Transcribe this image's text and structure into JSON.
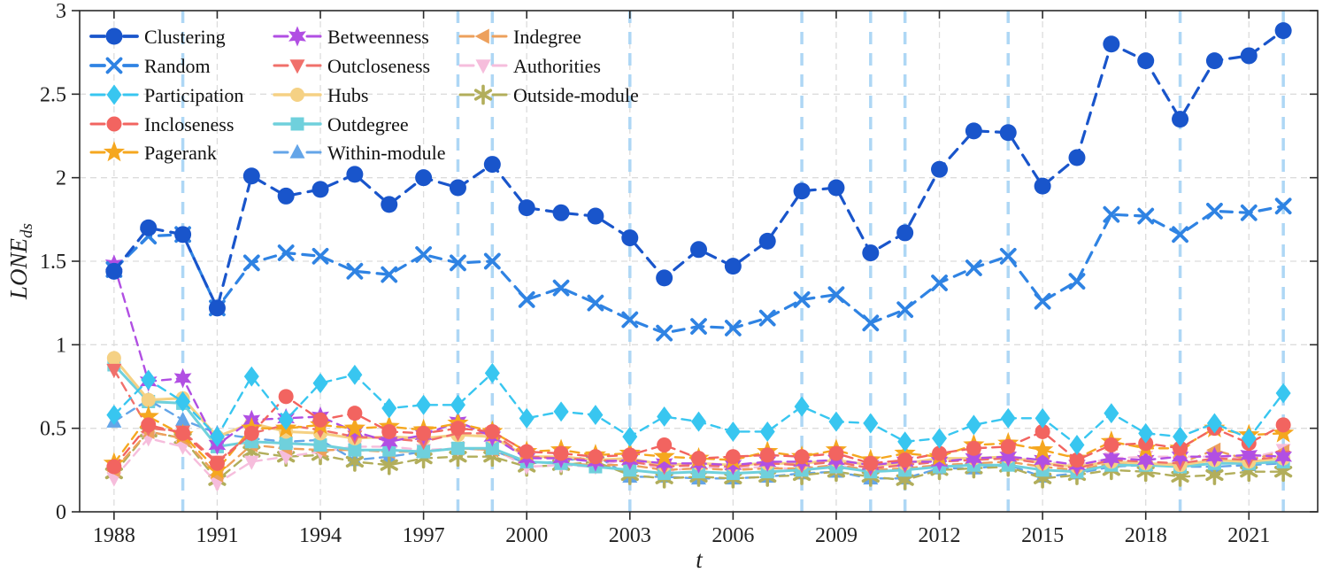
{
  "figure": {
    "xlabel": "t",
    "ylabel": "LONE",
    "ylabel_sub": "ds",
    "background": "#ffffff",
    "axis_color": "#2b2b2b",
    "grid_color": "#dcdcdc",
    "event_line_color": "#aed7f5",
    "event_years": [
      1990,
      1998,
      1999,
      2003,
      2008,
      2010,
      2011,
      2014,
      2019,
      2022
    ],
    "x_ticks": [
      1988,
      1991,
      1994,
      1997,
      2000,
      2003,
      2006,
      2009,
      2012,
      2015,
      2018,
      2021
    ],
    "y_ticks": [
      0,
      0.5,
      1,
      1.5,
      2,
      2.5,
      3
    ],
    "y_tick_labels": [
      "0",
      "0.5",
      "1",
      "1.5",
      "2",
      "2.5",
      "3"
    ],
    "xlim": [
      1987,
      2023
    ],
    "ylim": [
      0,
      3
    ]
  },
  "chart_data": {
    "type": "line",
    "title": "",
    "xlabel": "t",
    "ylabel": "LONE_ds",
    "grid": true,
    "legend_position": "top-left",
    "legend_columns": 3,
    "x": [
      1988,
      1989,
      1990,
      1991,
      1992,
      1993,
      1994,
      1995,
      1996,
      1997,
      1998,
      1999,
      2000,
      2001,
      2002,
      2003,
      2004,
      2005,
      2006,
      2007,
      2008,
      2009,
      2010,
      2011,
      2012,
      2013,
      2014,
      2015,
      2016,
      2017,
      2018,
      2019,
      2020,
      2021,
      2022
    ],
    "series": [
      {
        "name": "Clustering",
        "color": "#1955cb",
        "marker": "circle",
        "marker_size": 9.5,
        "line": "dashed",
        "width": 3.2,
        "values": [
          1.44,
          1.7,
          1.66,
          1.22,
          2.01,
          1.89,
          1.93,
          2.02,
          1.84,
          2.0,
          1.94,
          2.08,
          1.82,
          1.79,
          1.77,
          1.64,
          1.4,
          1.57,
          1.47,
          1.62,
          1.92,
          1.94,
          1.55,
          1.67,
          2.05,
          2.28,
          2.27,
          1.95,
          2.12,
          2.8,
          2.7,
          2.35,
          2.7,
          2.73,
          2.88
        ]
      },
      {
        "name": "Random",
        "color": "#2f83e3",
        "marker": "x",
        "marker_size": 7.5,
        "line": "dashed",
        "width": 3.2,
        "values": [
          1.45,
          1.65,
          1.66,
          1.22,
          1.49,
          1.55,
          1.53,
          1.44,
          1.42,
          1.54,
          1.49,
          1.5,
          1.27,
          1.34,
          1.25,
          1.15,
          1.07,
          1.11,
          1.1,
          1.16,
          1.27,
          1.3,
          1.13,
          1.21,
          1.37,
          1.46,
          1.53,
          1.26,
          1.38,
          1.78,
          1.77,
          1.66,
          1.8,
          1.79,
          1.83
        ]
      },
      {
        "name": "Participation",
        "color": "#38c6f0",
        "marker": "diamond",
        "marker_size": 8.5,
        "line": "dashed",
        "width": 2.4,
        "values": [
          0.58,
          0.79,
          0.66,
          0.45,
          0.81,
          0.55,
          0.77,
          0.82,
          0.62,
          0.64,
          0.64,
          0.83,
          0.56,
          0.6,
          0.58,
          0.45,
          0.57,
          0.54,
          0.48,
          0.48,
          0.63,
          0.54,
          0.53,
          0.42,
          0.44,
          0.52,
          0.56,
          0.56,
          0.4,
          0.59,
          0.47,
          0.45,
          0.53,
          0.44,
          0.71
        ]
      },
      {
        "name": "Incloseness",
        "color": "#f26460",
        "marker": "circle",
        "marker_size": 8.5,
        "line": "dashed",
        "width": 2.4,
        "values": [
          0.27,
          0.52,
          0.47,
          0.29,
          0.47,
          0.69,
          0.55,
          0.59,
          0.48,
          0.47,
          0.5,
          0.48,
          0.36,
          0.35,
          0.33,
          0.34,
          0.4,
          0.32,
          0.33,
          0.34,
          0.33,
          0.35,
          0.29,
          0.31,
          0.35,
          0.38,
          0.39,
          0.48,
          0.31,
          0.4,
          0.41,
          0.38,
          0.5,
          0.41,
          0.52
        ]
      },
      {
        "name": "Pagerank",
        "color": "#f5a71f",
        "marker": "star5",
        "marker_size": 8.5,
        "line": "dashed",
        "width": 2.4,
        "values": [
          0.29,
          0.57,
          0.46,
          0.25,
          0.5,
          0.5,
          0.52,
          0.5,
          0.51,
          0.49,
          0.53,
          0.48,
          0.36,
          0.37,
          0.34,
          0.35,
          0.33,
          0.32,
          0.31,
          0.36,
          0.33,
          0.37,
          0.31,
          0.35,
          0.33,
          0.4,
          0.41,
          0.37,
          0.32,
          0.42,
          0.38,
          0.38,
          0.5,
          0.46,
          0.47
        ]
      },
      {
        "name": "Betweenness",
        "color": "#b14fe3",
        "marker": "star6",
        "marker_size": 8.5,
        "line": "dashed",
        "width": 2.4,
        "values": [
          1.48,
          0.78,
          0.8,
          0.4,
          0.55,
          0.56,
          0.57,
          0.48,
          0.42,
          0.46,
          0.54,
          0.45,
          0.32,
          0.32,
          0.3,
          0.31,
          0.29,
          0.29,
          0.28,
          0.3,
          0.3,
          0.31,
          0.28,
          0.3,
          0.3,
          0.32,
          0.33,
          0.31,
          0.28,
          0.32,
          0.31,
          0.33,
          0.33,
          0.34,
          0.33
        ]
      },
      {
        "name": "Outcloseness",
        "color": "#f0706b",
        "marker": "triangle-down",
        "marker_size": 8.5,
        "line": "dashed",
        "width": 2.4,
        "values": [
          0.85,
          0.5,
          0.48,
          0.3,
          0.47,
          0.52,
          0.49,
          0.45,
          0.44,
          0.42,
          0.47,
          0.47,
          0.33,
          0.32,
          0.31,
          0.3,
          0.27,
          0.28,
          0.27,
          0.29,
          0.28,
          0.3,
          0.26,
          0.28,
          0.3,
          0.31,
          0.32,
          0.29,
          0.26,
          0.31,
          0.3,
          0.29,
          0.32,
          0.31,
          0.33
        ]
      },
      {
        "name": "Hubs",
        "color": "#f5d184",
        "marker": "circle",
        "marker_size": 8.0,
        "line": "solid",
        "width": 3.0,
        "values": [
          0.92,
          0.67,
          0.68,
          0.45,
          0.53,
          0.48,
          0.47,
          0.44,
          0.45,
          0.44,
          0.46,
          0.45,
          0.33,
          0.33,
          0.31,
          0.32,
          0.28,
          0.29,
          0.28,
          0.29,
          0.29,
          0.31,
          0.28,
          0.29,
          0.32,
          0.32,
          0.33,
          0.29,
          0.27,
          0.3,
          0.29,
          0.28,
          0.31,
          0.3,
          0.32
        ]
      },
      {
        "name": "Outdegree",
        "color": "#6fd0dc",
        "marker": "square",
        "marker_size": 7.5,
        "line": "solid",
        "width": 3.0,
        "values": [
          0.88,
          0.66,
          0.65,
          0.39,
          0.42,
          0.41,
          0.4,
          0.37,
          0.37,
          0.36,
          0.38,
          0.38,
          0.3,
          0.29,
          0.27,
          0.25,
          0.23,
          0.24,
          0.23,
          0.24,
          0.25,
          0.27,
          0.24,
          0.25,
          0.27,
          0.28,
          0.28,
          0.25,
          0.24,
          0.28,
          0.28,
          0.27,
          0.29,
          0.29,
          0.3
        ]
      },
      {
        "name": "Within-module",
        "color": "#64a5e8",
        "marker": "triangle-up",
        "marker_size": 8.5,
        "line": "dashed",
        "width": 2.4,
        "values": [
          0.54,
          0.67,
          0.55,
          0.47,
          0.44,
          0.42,
          0.43,
          0.31,
          0.33,
          0.36,
          0.38,
          0.37,
          0.29,
          0.3,
          0.34,
          0.21,
          0.21,
          0.2,
          0.2,
          0.21,
          0.23,
          0.24,
          0.2,
          0.2,
          0.26,
          0.26,
          0.28,
          0.21,
          0.23,
          0.27,
          0.28,
          0.27,
          0.27,
          0.28,
          0.29
        ]
      },
      {
        "name": "Indegree",
        "color": "#eda05c",
        "marker": "triangle-left",
        "marker_size": 8.5,
        "line": "dashed",
        "width": 2.4,
        "values": [
          0.25,
          0.48,
          0.44,
          0.22,
          0.4,
          0.38,
          0.37,
          0.37,
          0.36,
          0.36,
          0.38,
          0.37,
          0.3,
          0.29,
          0.28,
          0.28,
          0.25,
          0.26,
          0.25,
          0.26,
          0.26,
          0.28,
          0.25,
          0.26,
          0.28,
          0.29,
          0.3,
          0.27,
          0.25,
          0.29,
          0.28,
          0.29,
          0.37,
          0.31,
          0.36
        ]
      },
      {
        "name": "Authorities",
        "color": "#f6bddc",
        "marker": "triangle-down",
        "marker_size": 8.5,
        "line": "dashed",
        "width": 2.4,
        "values": [
          0.2,
          0.44,
          0.39,
          0.17,
          0.3,
          0.33,
          0.36,
          0.39,
          0.39,
          0.37,
          0.38,
          0.38,
          0.27,
          0.28,
          0.27,
          0.32,
          0.24,
          0.27,
          0.26,
          0.27,
          0.25,
          0.27,
          0.27,
          0.28,
          0.3,
          0.32,
          0.33,
          0.3,
          0.28,
          0.32,
          0.33,
          0.33,
          0.33,
          0.32,
          0.37
        ]
      },
      {
        "name": "Outside-module",
        "color": "#b2ae5b",
        "marker": "asterisk",
        "marker_size": 8.0,
        "line": "dashed",
        "width": 2.4,
        "values": [
          0.23,
          0.48,
          0.44,
          0.19,
          0.36,
          0.33,
          0.34,
          0.3,
          0.28,
          0.32,
          0.33,
          0.33,
          0.27,
          0.28,
          0.3,
          0.22,
          0.2,
          0.21,
          0.2,
          0.21,
          0.22,
          0.24,
          0.21,
          0.19,
          0.25,
          0.26,
          0.27,
          0.2,
          0.22,
          0.25,
          0.24,
          0.21,
          0.22,
          0.24,
          0.24
        ]
      }
    ],
    "legend_column_indices": [
      [
        0,
        1,
        2,
        3,
        4
      ],
      [
        5,
        6,
        7,
        8,
        9
      ],
      [
        10,
        11,
        12
      ]
    ]
  }
}
